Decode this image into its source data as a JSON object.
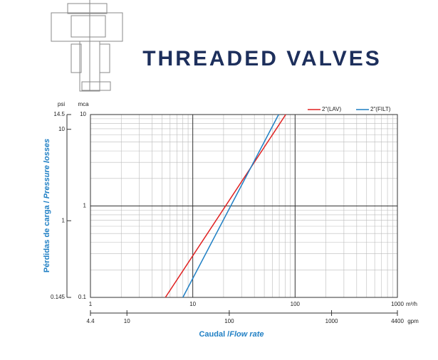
{
  "chart_data": {
    "type": "line",
    "title": "THREADED VALVES",
    "xlabel": "Caudal /",
    "xlabel_italic": "Flow rate",
    "ylabel": "Pérdidas de carga /",
    "ylabel_italic": "Pressure losses",
    "xunit": "m³/h",
    "yunit": "mca",
    "x2unit": "gpm",
    "y2unit": "psi",
    "xscale": "log",
    "yscale": "log",
    "grid": true,
    "xlim": [
      1,
      1000
    ],
    "xticks": [
      1,
      10,
      100,
      1000
    ],
    "ylim": [
      0.1,
      10
    ],
    "yticks": [
      0.1,
      1,
      10
    ],
    "x2lim": [
      4.4,
      4400
    ],
    "x2ticks": [
      4.4,
      10,
      100,
      1000,
      4400
    ],
    "y2lim": [
      0.145,
      14.5
    ],
    "y2ticks": [
      0.145,
      1,
      10,
      14.5
    ],
    "legend": "top-right",
    "series": [
      {
        "name": "2\"(LAV)",
        "color": "#e02020",
        "x": [
          5.4,
          81
        ],
        "values": [
          0.1,
          10
        ]
      },
      {
        "name": "2\"(FILT)",
        "color": "#1f7fc4",
        "x": [
          8,
          69
        ],
        "values": [
          0.1,
          10
        ]
      }
    ]
  }
}
